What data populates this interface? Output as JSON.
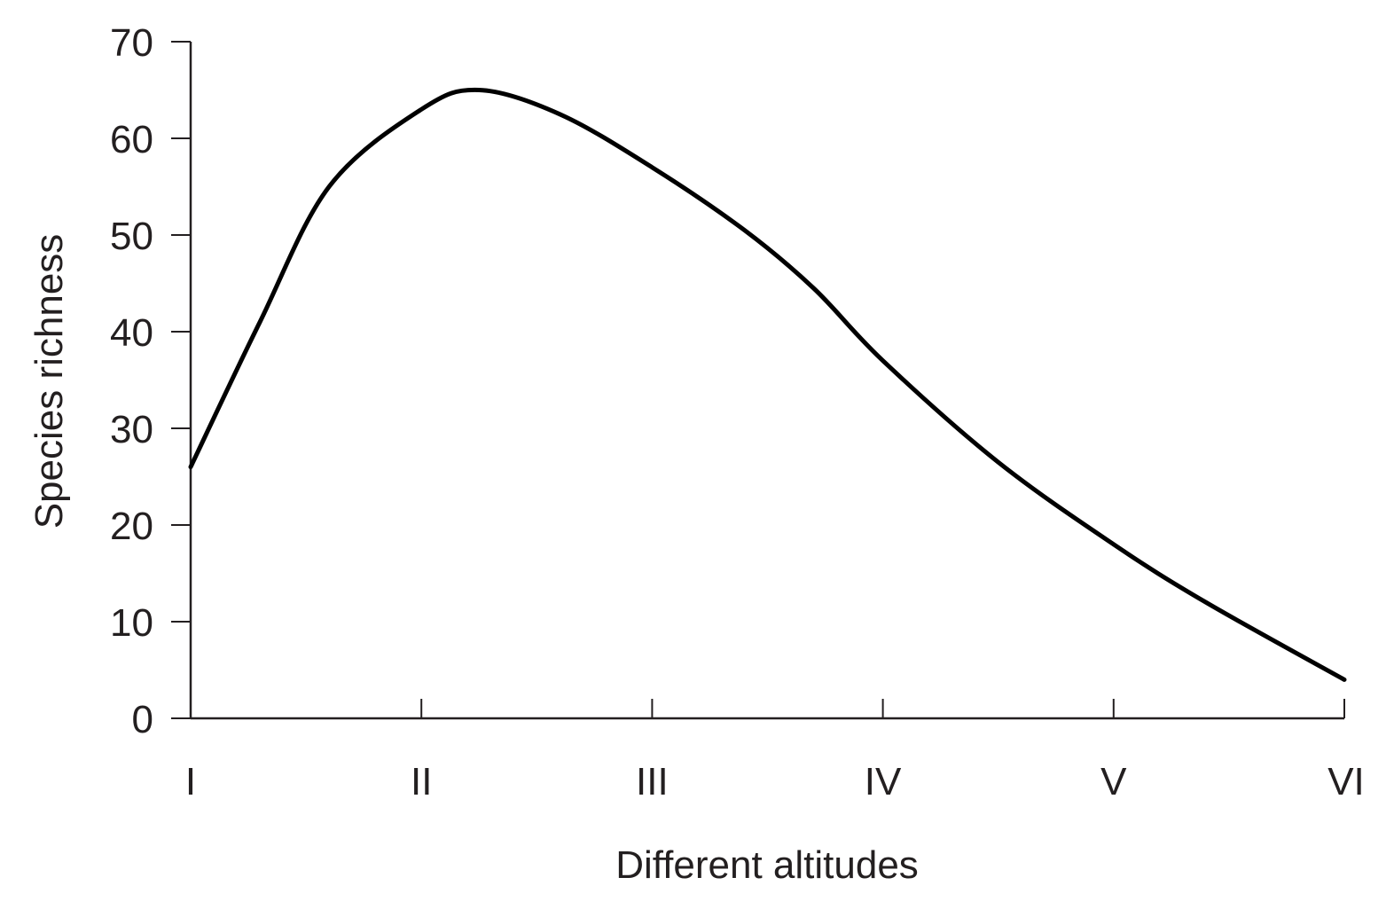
{
  "chart_data": {
    "type": "line",
    "title": "",
    "xlabel": "Different altitudes",
    "ylabel": "Species richness",
    "categories": [
      "I",
      "II",
      "III",
      "IV",
      "V",
      "VI"
    ],
    "ylim": [
      0,
      70
    ],
    "yticks": [
      0,
      10,
      20,
      30,
      40,
      50,
      60,
      70
    ],
    "grid": false,
    "legend": "none",
    "smooth": true,
    "series": [
      {
        "x": [
          1,
          1.3,
          1.6,
          2,
          2.25,
          2.6,
          3,
          3.4,
          3.7,
          4,
          4.5,
          5,
          5.4,
          6
        ],
        "values": [
          26,
          41,
          55,
          63,
          65,
          62.5,
          57,
          50.5,
          44.5,
          37,
          26.5,
          18,
          12,
          4
        ],
        "color": "#000000"
      }
    ]
  }
}
